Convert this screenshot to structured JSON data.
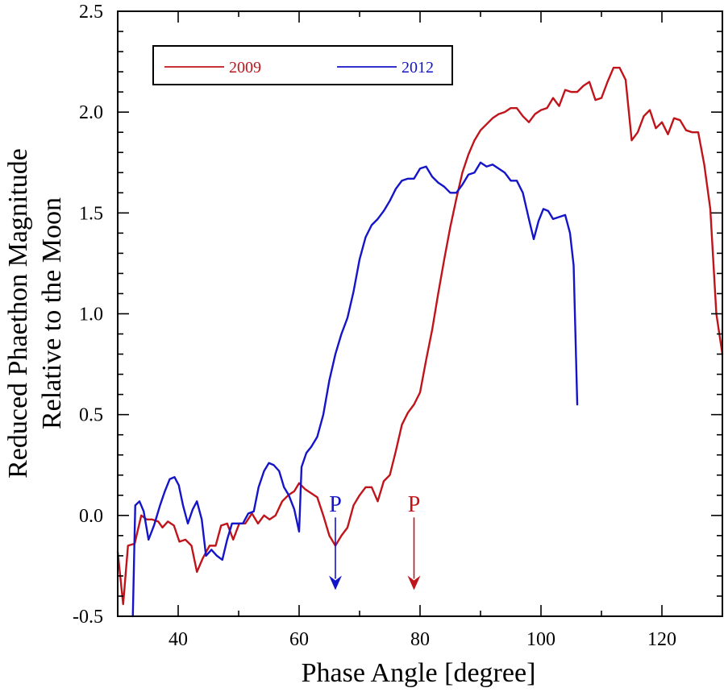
{
  "chart_data": {
    "type": "line",
    "xlabel": "Phase Angle [degree]",
    "ylabel_lines": [
      "Reduced Phaethon Magnitude",
      "Relative to the Moon"
    ],
    "xlim": [
      30,
      130
    ],
    "ylim": [
      -0.5,
      2.5
    ],
    "x_major_ticks": [
      40,
      60,
      80,
      100,
      120
    ],
    "x_major_tick_labels": [
      "40",
      "60",
      "80",
      "100",
      "120"
    ],
    "y_major_ticks": [
      -0.5,
      0.0,
      0.5,
      1.0,
      1.5,
      2.0,
      2.5
    ],
    "y_major_tick_labels": [
      "-0.5",
      "0.0",
      "0.5",
      "1.0",
      "1.5",
      "2.0",
      "2.5"
    ],
    "grid": false,
    "legend_position": "top-left",
    "series": [
      {
        "name": "2009",
        "color": "#c0141b",
        "points": [
          [
            30,
            -0.18
          ],
          [
            30.9,
            -0.44
          ],
          [
            31.7,
            -0.15
          ],
          [
            32.8,
            -0.14
          ],
          [
            33.9,
            0.0
          ],
          [
            34.8,
            -0.02
          ],
          [
            35.7,
            -0.02
          ],
          [
            36.7,
            -0.03
          ],
          [
            37.4,
            -0.06
          ],
          [
            38.3,
            -0.03
          ],
          [
            39.3,
            -0.05
          ],
          [
            40.2,
            -0.13
          ],
          [
            41.2,
            -0.12
          ],
          [
            42.2,
            -0.15
          ],
          [
            43.1,
            -0.28
          ],
          [
            44.1,
            -0.21
          ],
          [
            45.2,
            -0.15
          ],
          [
            46.2,
            -0.15
          ],
          [
            47.1,
            -0.05
          ],
          [
            48.1,
            -0.04
          ],
          [
            49.1,
            -0.12
          ],
          [
            50.1,
            -0.04
          ],
          [
            51.1,
            -0.04
          ],
          [
            52.2,
            0.01
          ],
          [
            53.2,
            -0.04
          ],
          [
            54.2,
            0.0
          ],
          [
            55.1,
            -0.02
          ],
          [
            56.1,
            0.0
          ],
          [
            57.2,
            0.07
          ],
          [
            58.2,
            0.1
          ],
          [
            59.2,
            0.12
          ],
          [
            60.0,
            0.16
          ],
          [
            61.0,
            0.13
          ],
          [
            62.0,
            0.11
          ],
          [
            63.0,
            0.09
          ],
          [
            64.0,
            0.0
          ],
          [
            65.0,
            -0.1
          ],
          [
            66.0,
            -0.15
          ],
          [
            67.0,
            -0.1
          ],
          [
            68.0,
            -0.06
          ],
          [
            69.0,
            0.05
          ],
          [
            70.0,
            0.1
          ],
          [
            71.0,
            0.14
          ],
          [
            72.0,
            0.14
          ],
          [
            73.0,
            0.07
          ],
          [
            74.0,
            0.17
          ],
          [
            75.0,
            0.2
          ],
          [
            76.0,
            0.32
          ],
          [
            77.0,
            0.45
          ],
          [
            78.0,
            0.51
          ],
          [
            79.0,
            0.55
          ],
          [
            80.0,
            0.61
          ],
          [
            81.0,
            0.77
          ],
          [
            82.0,
            0.92
          ],
          [
            83.0,
            1.1
          ],
          [
            84.0,
            1.27
          ],
          [
            85.0,
            1.43
          ],
          [
            86.0,
            1.57
          ],
          [
            87.0,
            1.7
          ],
          [
            88.0,
            1.79
          ],
          [
            89.0,
            1.86
          ],
          [
            90.0,
            1.91
          ],
          [
            91.0,
            1.94
          ],
          [
            92.0,
            1.97
          ],
          [
            93.0,
            1.99
          ],
          [
            94.0,
            2.0
          ],
          [
            95.0,
            2.02
          ],
          [
            96.0,
            2.02
          ],
          [
            97.0,
            1.98
          ],
          [
            98.0,
            1.95
          ],
          [
            99.0,
            1.99
          ],
          [
            100.0,
            2.01
          ],
          [
            101.0,
            2.02
          ],
          [
            102.0,
            2.07
          ],
          [
            103.0,
            2.03
          ],
          [
            104.0,
            2.11
          ],
          [
            105.0,
            2.1
          ],
          [
            106.0,
            2.1
          ],
          [
            107.0,
            2.13
          ],
          [
            108.0,
            2.15
          ],
          [
            109.0,
            2.06
          ],
          [
            110.0,
            2.07
          ],
          [
            111.0,
            2.15
          ],
          [
            112.0,
            2.22
          ],
          [
            113.0,
            2.22
          ],
          [
            114.0,
            2.16
          ],
          [
            115.0,
            1.86
          ],
          [
            116.0,
            1.9
          ],
          [
            117.0,
            1.98
          ],
          [
            118.0,
            2.01
          ],
          [
            119.0,
            1.92
          ],
          [
            120.0,
            1.95
          ],
          [
            121.0,
            1.89
          ],
          [
            122.0,
            1.97
          ],
          [
            123.0,
            1.96
          ],
          [
            124.0,
            1.91
          ],
          [
            125.0,
            1.9
          ],
          [
            126.0,
            1.9
          ],
          [
            127.0,
            1.74
          ],
          [
            128.0,
            1.52
          ],
          [
            129.0,
            1.0
          ],
          [
            130.0,
            0.8
          ]
        ]
      },
      {
        "name": "2012",
        "color": "#1414c8",
        "points": [
          [
            32.5,
            -0.5
          ],
          [
            32.9,
            0.05
          ],
          [
            33.6,
            0.07
          ],
          [
            34.3,
            0.02
          ],
          [
            35.1,
            -0.12
          ],
          [
            36.0,
            -0.05
          ],
          [
            37.0,
            0.05
          ],
          [
            37.8,
            0.12
          ],
          [
            38.6,
            0.18
          ],
          [
            39.4,
            0.19
          ],
          [
            40.1,
            0.15
          ],
          [
            40.8,
            0.05
          ],
          [
            41.6,
            -0.04
          ],
          [
            42.4,
            0.03
          ],
          [
            43.1,
            0.07
          ],
          [
            43.9,
            -0.02
          ],
          [
            44.6,
            -0.2
          ],
          [
            45.5,
            -0.17
          ],
          [
            46.4,
            -0.2
          ],
          [
            47.3,
            -0.22
          ],
          [
            48.1,
            -0.12
          ],
          [
            48.9,
            -0.04
          ],
          [
            49.8,
            -0.04
          ],
          [
            50.7,
            -0.04
          ],
          [
            51.6,
            0.01
          ],
          [
            52.5,
            0.02
          ],
          [
            53.3,
            0.14
          ],
          [
            54.2,
            0.22
          ],
          [
            55.0,
            0.26
          ],
          [
            55.8,
            0.25
          ],
          [
            56.7,
            0.22
          ],
          [
            57.5,
            0.14
          ],
          [
            58.3,
            0.1
          ],
          [
            59.2,
            0.03
          ],
          [
            60.0,
            -0.08
          ],
          [
            60.4,
            0.24
          ],
          [
            61.2,
            0.31
          ],
          [
            62.0,
            0.34
          ],
          [
            63.0,
            0.39
          ],
          [
            64.0,
            0.5
          ],
          [
            65.0,
            0.67
          ],
          [
            66.0,
            0.8
          ],
          [
            67.0,
            0.9
          ],
          [
            68.0,
            0.98
          ],
          [
            69.0,
            1.11
          ],
          [
            70.0,
            1.27
          ],
          [
            71.0,
            1.38
          ],
          [
            72.0,
            1.44
          ],
          [
            73.0,
            1.47
          ],
          [
            74.0,
            1.51
          ],
          [
            75.0,
            1.56
          ],
          [
            76.0,
            1.62
          ],
          [
            77.0,
            1.66
          ],
          [
            78.0,
            1.67
          ],
          [
            79.0,
            1.67
          ],
          [
            80.0,
            1.72
          ],
          [
            81.0,
            1.73
          ],
          [
            82.0,
            1.68
          ],
          [
            83.0,
            1.65
          ],
          [
            84.0,
            1.63
          ],
          [
            85.0,
            1.6
          ],
          [
            86.0,
            1.6
          ],
          [
            87.0,
            1.64
          ],
          [
            88.0,
            1.69
          ],
          [
            89.0,
            1.7
          ],
          [
            90.0,
            1.75
          ],
          [
            91.0,
            1.73
          ],
          [
            92.0,
            1.74
          ],
          [
            93.0,
            1.72
          ],
          [
            94.0,
            1.7
          ],
          [
            95.0,
            1.66
          ],
          [
            96.0,
            1.66
          ],
          [
            97.0,
            1.6
          ],
          [
            98.0,
            1.47
          ],
          [
            98.8,
            1.37
          ],
          [
            99.6,
            1.46
          ],
          [
            100.4,
            1.52
          ],
          [
            101.2,
            1.51
          ],
          [
            102.0,
            1.47
          ],
          [
            103.0,
            1.48
          ],
          [
            104.0,
            1.49
          ],
          [
            104.8,
            1.4
          ],
          [
            105.4,
            1.24
          ],
          [
            106.0,
            0.55
          ]
        ]
      }
    ],
    "annotations": [
      {
        "text": "P",
        "color": "#1414c8",
        "x": 66.0,
        "label_y": 0.02,
        "arrow_from_y": -0.01,
        "arrow_to_y": -0.37
      },
      {
        "text": "P",
        "color": "#c0141b",
        "x": 79.0,
        "label_y": 0.02,
        "arrow_from_y": -0.01,
        "arrow_to_y": -0.37
      }
    ]
  }
}
